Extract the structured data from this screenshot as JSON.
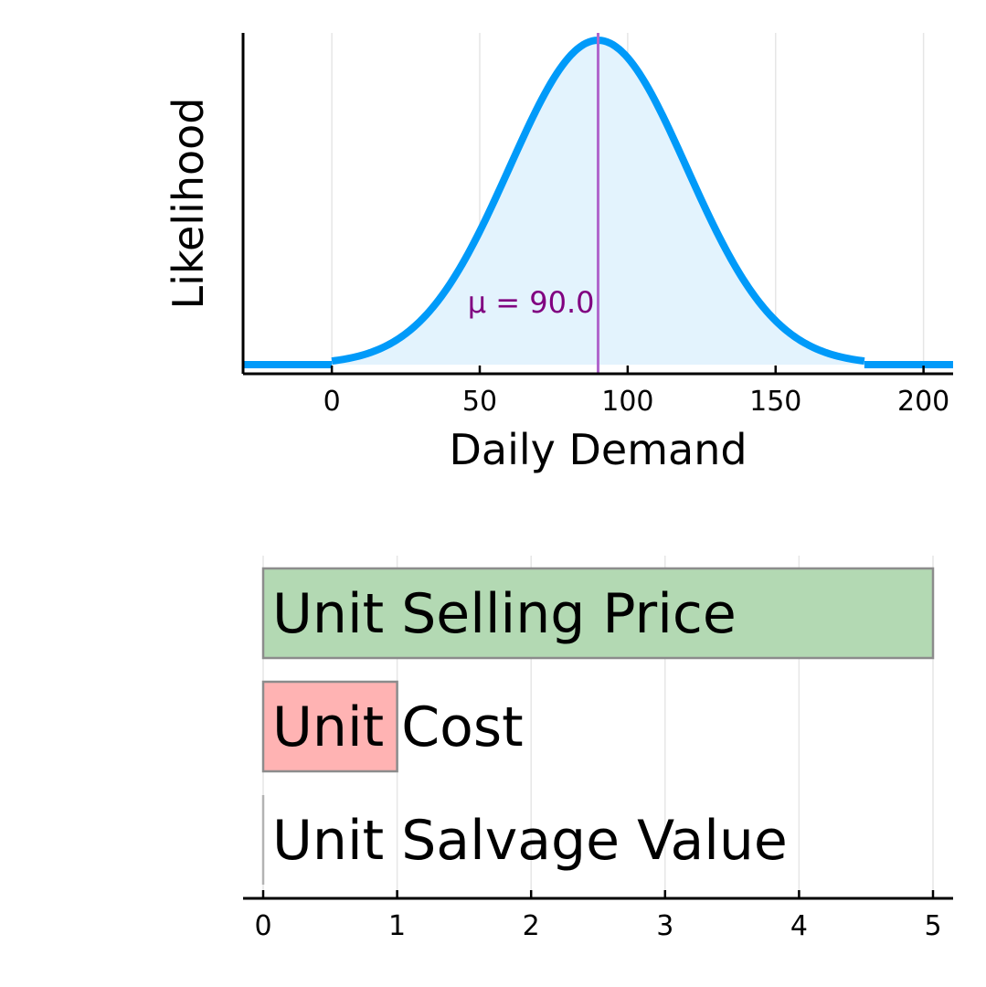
{
  "chart_data": [
    {
      "type": "area",
      "title": "",
      "xlabel": "Daily Demand",
      "ylabel": "Likelihood",
      "xlim": [
        -30,
        210
      ],
      "x_ticks": [
        0,
        50,
        100,
        150,
        200
      ],
      "grid": "vertical",
      "legend": "none",
      "distribution": {
        "kind": "normal",
        "mean": 90.0,
        "std": 30,
        "support": [
          0,
          180
        ]
      },
      "annotation": {
        "label": "μ = 90.0",
        "x": 90.0
      },
      "colors": {
        "line": "#009af9",
        "fill": "#e3f3fd",
        "mean_line": "#b067cc",
        "annotation": "#800080"
      }
    },
    {
      "type": "bar",
      "orientation": "horizontal",
      "title": "",
      "xlabel": "",
      "ylabel": "",
      "xlim": [
        0,
        5
      ],
      "x_ticks": [
        0,
        1,
        2,
        3,
        4,
        5
      ],
      "grid": "vertical",
      "legend": "none",
      "categories": [
        "Unit Selling Price",
        "Unit Cost",
        "Unit Salvage Value"
      ],
      "values": [
        5,
        1,
        0
      ],
      "colors": [
        "#b3d9b3",
        "#ffb3b3",
        "#d9d9d9"
      ]
    }
  ]
}
